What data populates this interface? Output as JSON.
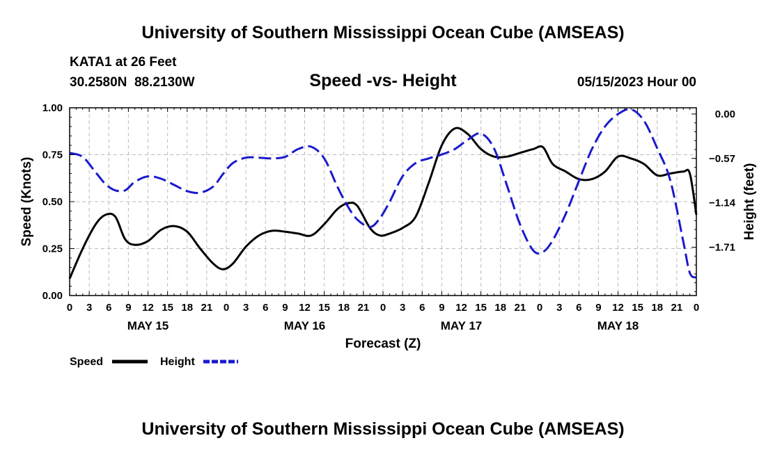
{
  "page": {
    "title": "University of Southern Mississippi Ocean Cube (AMSEAS)",
    "footer_title": "University of Southern Mississippi Ocean Cube (AMSEAS)"
  },
  "station": {
    "name": "KATA1 at 26 Feet",
    "coords": "30.2580N  88.2130W",
    "date": "05/15/2023 Hour 00"
  },
  "colors": {
    "speed": "#000000",
    "height": "#1a1acc",
    "grid": "#bbbbbb"
  },
  "chart_data": {
    "type": "line",
    "title": "Speed -vs- Height",
    "xlabel": "Forecast (Z)",
    "ylabel": "Speed (Knots)",
    "y2label": "Height (feet)",
    "x_hours": [
      0,
      96
    ],
    "x_ticks": [
      0,
      3,
      6,
      9,
      12,
      15,
      18,
      21,
      24,
      27,
      30,
      33,
      36,
      39,
      42,
      45,
      48,
      51,
      54,
      57,
      60,
      63,
      66,
      69,
      72,
      75,
      78,
      81,
      84,
      87,
      90,
      93,
      96
    ],
    "x_tick_labels": [
      "0",
      "3",
      "6",
      "9",
      "12",
      "15",
      "18",
      "21",
      "0",
      "3",
      "6",
      "9",
      "12",
      "15",
      "18",
      "21",
      "0",
      "3",
      "6",
      "9",
      "12",
      "15",
      "18",
      "21",
      "0",
      "3",
      "6",
      "9",
      "12",
      "15",
      "18",
      "21",
      "0"
    ],
    "day_labels": [
      {
        "hour": 12,
        "label": "MAY 15"
      },
      {
        "hour": 36,
        "label": "MAY 16"
      },
      {
        "hour": 60,
        "label": "MAY 17"
      },
      {
        "hour": 84,
        "label": "MAY 18"
      }
    ],
    "ylim": [
      0,
      1
    ],
    "y_ticks": [
      0,
      0.25,
      0.5,
      0.75,
      1
    ],
    "y_tick_labels": [
      "0.00",
      "0.25",
      "0.50",
      "0.75",
      "1.00"
    ],
    "y2lim": [
      -2.33,
      0.08
    ],
    "y2_ticks": [
      0,
      -0.57,
      -1.14,
      -1.71
    ],
    "y2_tick_labels": [
      "0.00",
      "−0.57",
      "−1.14",
      "−1.71"
    ],
    "series": [
      {
        "name": "Speed",
        "axis": "left",
        "style": "solid",
        "x": [
          0,
          2,
          4,
          5.5,
          7,
          8.5,
          10,
          12,
          14,
          16,
          18,
          20,
          22,
          23.5,
          25,
          27,
          29,
          31,
          33,
          35,
          37,
          39,
          41,
          42.5,
          44,
          46,
          47.5,
          49,
          51,
          53,
          55,
          57,
          59,
          61,
          63,
          65,
          67,
          69,
          71,
          72.5,
          74,
          76,
          78,
          80,
          82,
          84,
          86,
          88,
          90,
          92,
          94,
          95,
          96
        ],
        "y": [
          0.09,
          0.25,
          0.38,
          0.43,
          0.42,
          0.3,
          0.27,
          0.29,
          0.35,
          0.37,
          0.34,
          0.25,
          0.17,
          0.14,
          0.17,
          0.26,
          0.32,
          0.345,
          0.34,
          0.33,
          0.32,
          0.38,
          0.46,
          0.49,
          0.48,
          0.36,
          0.32,
          0.33,
          0.36,
          0.42,
          0.6,
          0.8,
          0.89,
          0.86,
          0.78,
          0.74,
          0.74,
          0.76,
          0.78,
          0.79,
          0.7,
          0.66,
          0.62,
          0.62,
          0.66,
          0.74,
          0.73,
          0.7,
          0.64,
          0.65,
          0.66,
          0.65,
          0.43
        ]
      },
      {
        "name": "Height",
        "axis": "right",
        "style": "dashed",
        "x": [
          0,
          2,
          4,
          5.5,
          7,
          8.5,
          10,
          12,
          14,
          16,
          18,
          20,
          22,
          23.5,
          25,
          27,
          29,
          31,
          33,
          35,
          37,
          39,
          41,
          42.5,
          44,
          46,
          47.5,
          49,
          51,
          53,
          55,
          57,
          59,
          61,
          63,
          65,
          67,
          69,
          71,
          72.5,
          74,
          76,
          78,
          80,
          82,
          84,
          86,
          88,
          90,
          92,
          94,
          95,
          96
        ],
        "y": [
          -0.5,
          -0.55,
          -0.75,
          -0.9,
          -0.98,
          -0.98,
          -0.87,
          -0.8,
          -0.83,
          -0.91,
          -0.99,
          -1.01,
          -0.93,
          -0.77,
          -0.63,
          -0.56,
          -0.56,
          -0.57,
          -0.55,
          -0.45,
          -0.42,
          -0.57,
          -0.93,
          -1.17,
          -1.35,
          -1.45,
          -1.34,
          -1.13,
          -0.8,
          -0.63,
          -0.57,
          -0.52,
          -0.45,
          -0.33,
          -0.25,
          -0.44,
          -0.92,
          -1.42,
          -1.75,
          -1.77,
          -1.62,
          -1.28,
          -0.86,
          -0.45,
          -0.16,
          0.0,
          0.06,
          -0.09,
          -0.44,
          -0.85,
          -1.64,
          -2.04,
          -2.1
        ]
      }
    ],
    "legend": [
      {
        "label": "Speed",
        "style": "solid",
        "color": "#000000"
      },
      {
        "label": "Height",
        "style": "dashed",
        "color": "#1a1acc"
      }
    ],
    "legend_position": "bottom-left"
  }
}
